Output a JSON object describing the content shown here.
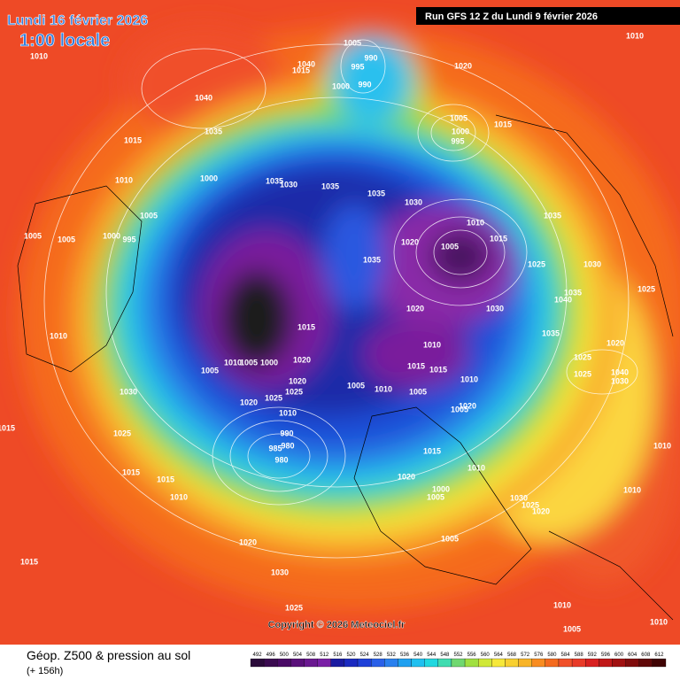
{
  "header": {
    "date": "Lundi 16 février 2026",
    "time": "1:00 locale",
    "run": "Run GFS 12 Z du Lundi 9 février 2026"
  },
  "footer": {
    "title": "Géop. Z500 & pression au sol",
    "lead": "(+ 156h)",
    "copyright": "Copyright © 2026 Meteociel.fr"
  },
  "legend": {
    "levels": [
      492,
      496,
      500,
      504,
      508,
      512,
      516,
      520,
      524,
      528,
      532,
      536,
      540,
      544,
      548,
      552,
      556,
      560,
      564,
      568,
      572,
      576,
      580,
      584,
      588,
      592,
      596,
      600,
      604,
      608,
      612
    ]
  },
  "map": {
    "pressure_labels": [
      1010,
      1040,
      1015,
      1005,
      990,
      995,
      1000,
      990,
      1020,
      1010,
      1040,
      1035,
      1015,
      1005,
      1000,
      995,
      1015,
      1010,
      1000,
      1035,
      1030,
      1035,
      1035,
      1030,
      1005,
      1005,
      1005,
      1000,
      995,
      1010,
      1020,
      1005,
      1015,
      1035,
      1025,
      1030,
      1025,
      1035,
      1035,
      1040,
      1020,
      1015,
      1030,
      1035,
      1020,
      1010,
      1010,
      1000,
      1005,
      1010,
      1020,
      1015,
      1015,
      1005,
      1025,
      1025,
      1040,
      1030,
      1020,
      1025,
      1005,
      1010,
      1005,
      1010,
      1020,
      1025,
      1030,
      1020,
      1005,
      1010,
      1015,
      1025,
      990,
      985,
      980,
      980,
      1015,
      1010,
      1010,
      1015,
      1015,
      1010,
      1020,
      1000,
      1005,
      1030,
      1025,
      1020,
      1010,
      1005,
      1020,
      1015,
      1030,
      1025,
      1010,
      1005,
      1010
    ]
  }
}
